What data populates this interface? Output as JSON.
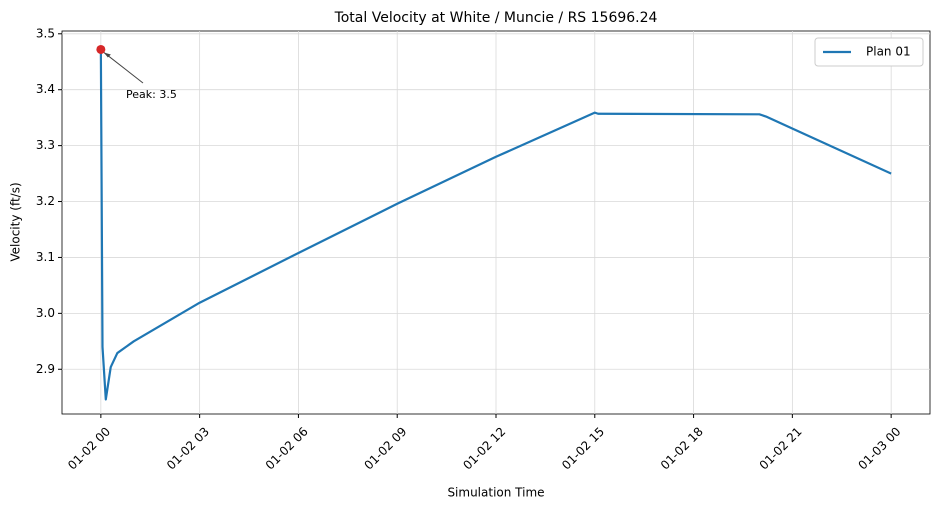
{
  "chart_data": {
    "type": "line",
    "title": "Total Velocity at White / Muncie / RS 15696.24",
    "x_label": "Simulation Time",
    "y_label": "Velocity (ft/s)",
    "x": [
      0,
      0.05,
      0.15,
      0.3,
      0.5,
      1,
      3,
      6,
      9,
      12,
      15,
      15.1,
      20,
      20.2,
      24
    ],
    "series": [
      {
        "name": "Plan 01",
        "color": "#1f77b4",
        "values": [
          3.472,
          2.94,
          2.846,
          2.904,
          2.929,
          2.95,
          3.019,
          3.108,
          3.196,
          3.28,
          3.359,
          3.357,
          3.356,
          3.352,
          3.25
        ]
      }
    ],
    "xlim": [
      -1.18,
      25.18
    ],
    "ylim": [
      2.82,
      3.505
    ],
    "xticks": [
      {
        "value": 0,
        "label": "01-02 00"
      },
      {
        "value": 3,
        "label": "01-02 03"
      },
      {
        "value": 6,
        "label": "01-02 06"
      },
      {
        "value": 9,
        "label": "01-02 09"
      },
      {
        "value": 12,
        "label": "01-02 12"
      },
      {
        "value": 15,
        "label": "01-02 15"
      },
      {
        "value": 18,
        "label": "01-02 18"
      },
      {
        "value": 21,
        "label": "01-02 21"
      },
      {
        "value": 24,
        "label": "01-03 00"
      }
    ],
    "yticks": [
      2.9,
      {
        "value": 3,
        "label": "3.0"
      },
      3.1,
      3.2,
      3.3,
      3.4,
      3.5
    ],
    "grid": true,
    "legend": "upper right",
    "annotation": {
      "text": "Peak: 3.5",
      "marker_color": "#d62728"
    }
  }
}
